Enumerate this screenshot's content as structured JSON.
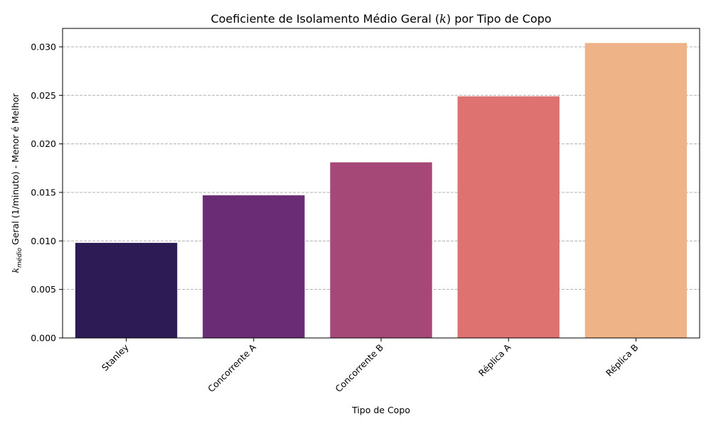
{
  "chart_data": {
    "type": "bar",
    "title": "Coeficiente de Isolamento Médio Geral (k) por Tipo de Copo",
    "xlabel": "Tipo de Copo",
    "ylabel": "k_médio Geral (1/minuto) - Menor é Melhor",
    "categories": [
      "Stanley",
      "Concorrente A",
      "Concorrente B",
      "Réplica A",
      "Réplica B"
    ],
    "values": [
      0.0098,
      0.0147,
      0.0181,
      0.0249,
      0.0304
    ],
    "colors": [
      "#2c1b55",
      "#6a2c74",
      "#a54877",
      "#de7270",
      "#efb388"
    ],
    "ylim": [
      0,
      0.0319
    ],
    "yticks": [
      "0.000",
      "0.005",
      "0.010",
      "0.015",
      "0.020",
      "0.025",
      "0.030"
    ],
    "grid": "y-dashed",
    "legend": "none"
  }
}
